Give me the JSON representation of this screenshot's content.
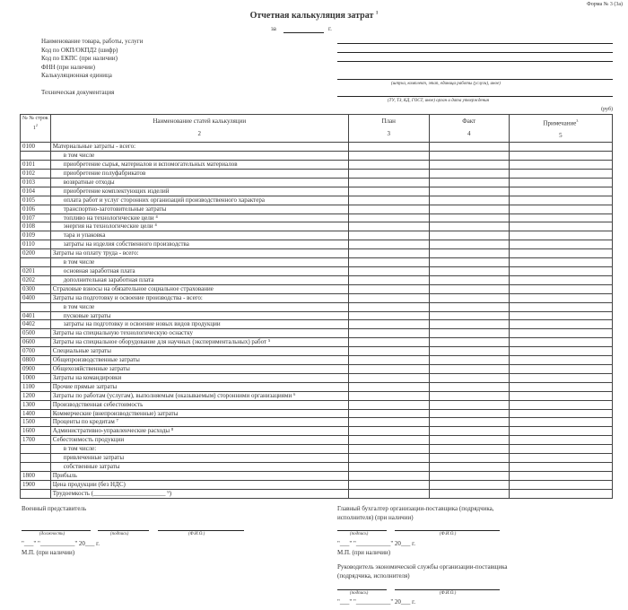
{
  "form_number": "Форма № 3 (3а)",
  "title": "Отчетная калькуляция затрат",
  "title_sup": "1",
  "period_prefix": "за",
  "period_suffix": "г.",
  "fields": [
    "Наименование товара, работы, услуги",
    "Код по ОКП/ОКПД2 (шифр)",
    "Код по ЕКПС (при наличии)",
    "ФНН (при наличии)",
    "Калькуляционная единица",
    "Техническая документация"
  ],
  "unit_hint": "(штука, комплект, этап, единица работы (услуги), иное)",
  "doc_hint": "(ТУ, ТЗ, КД, ГОСТ, иное) орган и дата утверждения",
  "currency": "(руб)",
  "table": {
    "headers": {
      "code": "№ № строк",
      "code_num": "1",
      "code_sup": "2",
      "name": "Наименование статей калькуляции",
      "name_num": "2",
      "plan": "План",
      "plan_num": "3",
      "fact": "Факт",
      "fact_num": "4",
      "note": "Примечание",
      "note_sup": "3",
      "note_num": "5"
    },
    "rows": [
      {
        "code": "0100",
        "name": "Материальные затраты - всего:",
        "indent": false
      },
      {
        "code": "",
        "name": "в том числе",
        "indent": true
      },
      {
        "code": "0101",
        "name": "приобретение сырья, материалов и вспомогательных материалов",
        "indent": true
      },
      {
        "code": "0102",
        "name": "приобретение полуфабрикатов",
        "indent": true
      },
      {
        "code": "0103",
        "name": "возвратные отходы",
        "indent": true
      },
      {
        "code": "0104",
        "name": "приобретение комплектующих изделий",
        "indent": true
      },
      {
        "code": "0105",
        "name": "оплата работ и услуг сторонних организаций производственного характера",
        "indent": true
      },
      {
        "code": "0106",
        "name": "транспортно-заготовительные затраты",
        "indent": true
      },
      {
        "code": "0107",
        "name": "топливо на технологические цели ⁴",
        "indent": true
      },
      {
        "code": "0108",
        "name": "энергия на технологические цели ⁴",
        "indent": true
      },
      {
        "code": "0109",
        "name": "тара и упаковка",
        "indent": true
      },
      {
        "code": "0110",
        "name": "затраты на изделия собственного производства",
        "indent": true
      },
      {
        "code": "0200",
        "name": "Затраты на оплату труда - всего:",
        "indent": false
      },
      {
        "code": "",
        "name": "в том числе",
        "indent": true
      },
      {
        "code": "0201",
        "name": "основная заработная плата",
        "indent": true
      },
      {
        "code": "0202",
        "name": "дополнительная заработная плата",
        "indent": true
      },
      {
        "code": "0300",
        "name": "Страховые взносы на обязательное социальное страхование",
        "indent": false
      },
      {
        "code": "0400",
        "name": "Затраты на подготовку и освоение производства - всего:",
        "indent": false
      },
      {
        "code": "",
        "name": "в том числе",
        "indent": true
      },
      {
        "code": "0401",
        "name": "пусковые затраты",
        "indent": true
      },
      {
        "code": "0402",
        "name": "затраты на подготовку и освоение новых видов продукции",
        "indent": true
      },
      {
        "code": "0500",
        "name": "Затраты на специальную технологическую оснастку",
        "indent": false
      },
      {
        "code": "0600",
        "name": "Затраты на специальное оборудование для научных (экспериментальных) работ ⁵",
        "indent": false
      },
      {
        "code": "0700",
        "name": "Специальные затраты",
        "indent": false
      },
      {
        "code": "0800",
        "name": "Общепроизводственные затраты",
        "indent": false
      },
      {
        "code": "0900",
        "name": "Общехозяйственные затраты",
        "indent": false
      },
      {
        "code": "1000",
        "name": "Затраты на командировки",
        "indent": false
      },
      {
        "code": "1100",
        "name": "Прочие прямые затраты",
        "indent": false
      },
      {
        "code": "1200",
        "name": "Затраты по работам (услугам), выполняемым (оказываемым) сторонними организациями ⁶",
        "indent": false
      },
      {
        "code": "1300",
        "name": "Производственная себестоимость",
        "indent": false
      },
      {
        "code": "1400",
        "name": "Коммерческие (внепроизводственные) затраты",
        "indent": false
      },
      {
        "code": "1500",
        "name": "Проценты по кредитам ⁷",
        "indent": false
      },
      {
        "code": "1600",
        "name": "Административно-управленческие расходы ⁸",
        "indent": false
      },
      {
        "code": "1700",
        "name": "Себестоимость продукции",
        "indent": false
      },
      {
        "code": "",
        "name": "в том числе:",
        "indent": true
      },
      {
        "code": "",
        "name": "привлеченные затраты",
        "indent": true
      },
      {
        "code": "",
        "name": "собственные затраты",
        "indent": true
      },
      {
        "code": "1800",
        "name": "Прибыль",
        "indent": false
      },
      {
        "code": "1900",
        "name": "Цена продукции (без НДС)",
        "indent": false
      },
      {
        "code": "",
        "name": "Трудоемкость  (_______________________ ⁹)",
        "indent": false
      }
    ]
  },
  "signatures": {
    "military_rep": "Военный представитель",
    "position_hint": "(должность)",
    "signature_hint": "(подпись)",
    "fio_hint": "(Ф.И.О.)",
    "date_line": "\"___\" \"___________\" 20___ г.",
    "stamp": "М.П. (при наличии)",
    "chief_accountant": "Главный бухгалтер организации-поставщика (подрядчика,",
    "chief_accountant_2": "исполнителя) (при наличии)",
    "econ_head": "Руководитель экономической службы организации-поставщика",
    "econ_head_2": "(подрядчика, исполнителя)"
  }
}
